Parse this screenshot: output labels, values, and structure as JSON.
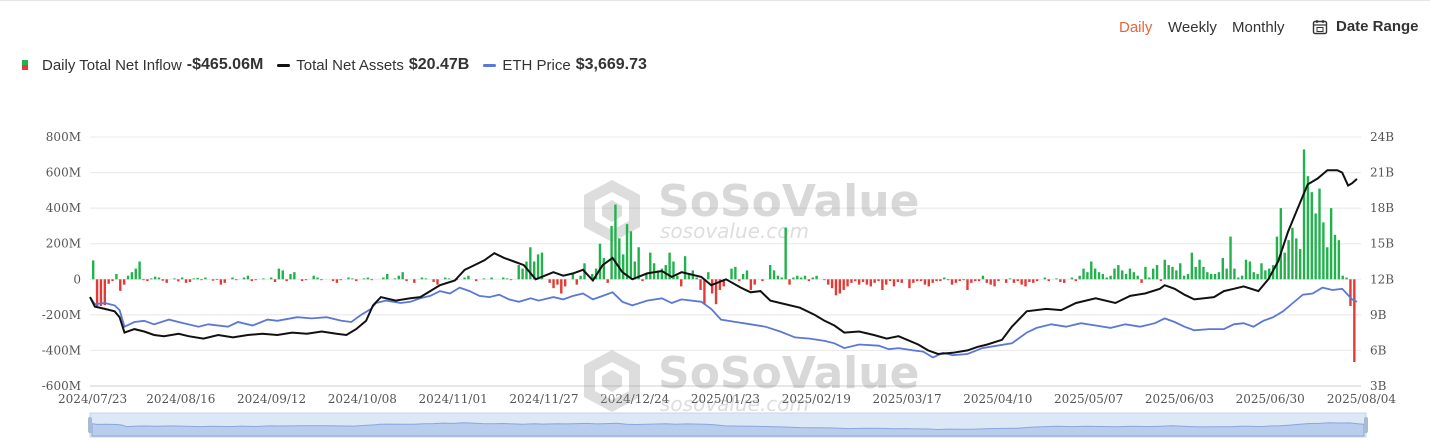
{
  "toolbar": {
    "periods": [
      "Daily",
      "Weekly",
      "Monthly"
    ],
    "active_period": "Daily",
    "date_range_label": "Date Range",
    "date_range_icon": "calendar-icon"
  },
  "legend": {
    "inflow": {
      "label": "Daily Total Net Inflow",
      "value": "-$465.06M"
    },
    "assets": {
      "label": "Total Net Assets",
      "value": "$20.47B"
    },
    "price": {
      "label": "ETH Price",
      "value": "$3,669.73"
    }
  },
  "watermark": {
    "brand": "SoSoValue",
    "domain": "sosovalue.com"
  },
  "colors": {
    "inflow_positive": "#22b14c",
    "inflow_negative": "#e53935",
    "assets_line": "#111111",
    "price_line": "#5b78d6",
    "active_period": "#e8643c"
  },
  "chart_data": {
    "type": "bar+line",
    "x_tick_labels": [
      "2024/07/23",
      "2024/08/16",
      "2024/09/12",
      "2024/10/08",
      "2024/11/01",
      "2024/11/27",
      "2024/12/24",
      "2025/01/23",
      "2025/02/19",
      "2025/03/17",
      "2025/04/10",
      "2025/05/07",
      "2025/06/03",
      "2025/06/30",
      "2025/08/04"
    ],
    "y_left": {
      "ticks": [
        "800M",
        "600M",
        "400M",
        "200M",
        "0",
        "-200M",
        "-400M",
        "-600M"
      ],
      "range": [
        -600,
        800
      ],
      "unit": "M"
    },
    "y_right": {
      "ticks": [
        "24B",
        "21B",
        "18B",
        "15B",
        "12B",
        "9B",
        "6B",
        "3B"
      ],
      "range": [
        3,
        24
      ],
      "unit": "B"
    },
    "grid": true,
    "series": [
      {
        "name": "Daily Total Net Inflow",
        "kind": "bar",
        "values": [
          106,
          -151,
          -150,
          -145,
          -25,
          -10,
          30,
          -65,
          -30,
          20,
          40,
          60,
          100,
          -5,
          -10,
          5,
          15,
          10,
          -8,
          -20,
          0,
          5,
          -12,
          10,
          -20,
          -15,
          5,
          8,
          -5,
          10,
          0,
          -8,
          2,
          -30,
          -20,
          0,
          10,
          -5,
          0,
          10,
          20,
          -10,
          -5,
          0,
          5,
          0,
          10,
          -15,
          60,
          50,
          -10,
          30,
          40,
          0,
          -10,
          -5,
          0,
          20,
          10,
          -5,
          0,
          0,
          -10,
          -20,
          -5,
          0,
          10,
          5,
          -10,
          0,
          5,
          10,
          -5,
          0,
          0,
          10,
          30,
          0,
          5,
          20,
          40,
          -10,
          0,
          -20,
          0,
          10,
          5,
          0,
          -15,
          -30,
          0,
          10,
          5,
          0,
          -5,
          0,
          10,
          20,
          0,
          -10,
          0,
          5,
          0,
          10,
          0,
          0,
          10,
          5,
          -5,
          0,
          80,
          60,
          100,
          180,
          100,
          140,
          150,
          0,
          -20,
          -50,
          -30,
          -80,
          -40,
          0,
          30,
          -30,
          20,
          90,
          0,
          30,
          60,
          200,
          120,
          -20,
          300,
          420,
          230,
          140,
          310,
          270,
          100,
          180,
          -10,
          30,
          150,
          90,
          50,
          60,
          80,
          150,
          100,
          20,
          -40,
          130,
          30,
          50,
          10,
          -60,
          -140,
          40,
          -80,
          -140,
          -60,
          -40,
          0,
          60,
          70,
          -10,
          30,
          50,
          -60,
          -30,
          0,
          -10,
          0,
          80,
          50,
          20,
          10,
          290,
          -30,
          10,
          20,
          10,
          20,
          -10,
          10,
          20,
          0,
          -5,
          -30,
          -50,
          -90,
          -80,
          -60,
          -40,
          -20,
          -10,
          -30,
          -15,
          -30,
          -40,
          -20,
          -10,
          -60,
          -30,
          -10,
          -40,
          -15,
          -20,
          0,
          -50,
          -20,
          -10,
          -10,
          -30,
          -40,
          -20,
          -10,
          -10,
          10,
          -5,
          -30,
          -20,
          -10,
          -5,
          -60,
          -20,
          -10,
          -10,
          20,
          -20,
          -30,
          -40,
          -10,
          0,
          -20,
          5,
          -20,
          -10,
          -30,
          -40,
          -15,
          -20,
          -10,
          0,
          10,
          -10,
          0,
          5,
          -15,
          -20,
          0,
          10,
          -10,
          20,
          60,
          40,
          100,
          60,
          40,
          30,
          10,
          20,
          60,
          80,
          50,
          30,
          60,
          40,
          20,
          -20,
          70,
          10,
          60,
          80,
          -10,
          110,
          80,
          70,
          50,
          90,
          20,
          30,
          150,
          70,
          110,
          70,
          40,
          30,
          30,
          40,
          120,
          60,
          240,
          60,
          10,
          20,
          110,
          100,
          40,
          30,
          90,
          50,
          60,
          80,
          240,
          400,
          150,
          220,
          290,
          230,
          170,
          730,
          580,
          490,
          370,
          510,
          320,
          180,
          400,
          250,
          220,
          20,
          10,
          -150,
          -465
        ]
      },
      {
        "name": "Total Net Assets",
        "kind": "line",
        "unit": "B",
        "points": [
          [
            0,
            10.5
          ],
          [
            5,
            9.7
          ],
          [
            15,
            9.5
          ],
          [
            25,
            9.3
          ],
          [
            30,
            8.8
          ],
          [
            35,
            7.5
          ],
          [
            45,
            7.8
          ],
          [
            55,
            7.6
          ],
          [
            65,
            7.3
          ],
          [
            75,
            7.2
          ],
          [
            90,
            7.4
          ],
          [
            100,
            7.2
          ],
          [
            115,
            7.0
          ],
          [
            130,
            7.3
          ],
          [
            145,
            7.1
          ],
          [
            160,
            7.3
          ],
          [
            175,
            7.4
          ],
          [
            190,
            7.3
          ],
          [
            205,
            7.5
          ],
          [
            220,
            7.4
          ],
          [
            235,
            7.6
          ],
          [
            250,
            7.4
          ],
          [
            260,
            7.3
          ],
          [
            270,
            7.8
          ],
          [
            280,
            8.5
          ],
          [
            287,
            9.8
          ],
          [
            295,
            10.5
          ],
          [
            310,
            10.2
          ],
          [
            325,
            10.4
          ],
          [
            335,
            10.5
          ],
          [
            345,
            11.0
          ],
          [
            355,
            11.5
          ],
          [
            370,
            11.9
          ],
          [
            380,
            12.8
          ],
          [
            390,
            13.2
          ],
          [
            400,
            13.6
          ],
          [
            410,
            14.2
          ],
          [
            420,
            13.8
          ],
          [
            430,
            13.5
          ],
          [
            440,
            13.2
          ],
          [
            452,
            12.0
          ],
          [
            470,
            12.6
          ],
          [
            480,
            12.3
          ],
          [
            490,
            12.5
          ],
          [
            500,
            12.8
          ],
          [
            510,
            11.9
          ],
          [
            520,
            13.2
          ],
          [
            530,
            13.8
          ],
          [
            540,
            12.6
          ],
          [
            550,
            12.0
          ],
          [
            565,
            12.5
          ],
          [
            580,
            12.7
          ],
          [
            590,
            12.2
          ],
          [
            600,
            12.6
          ],
          [
            620,
            12.2
          ],
          [
            630,
            11.5
          ],
          [
            645,
            12.0
          ],
          [
            660,
            11.3
          ],
          [
            670,
            10.9
          ],
          [
            680,
            11.0
          ],
          [
            690,
            10.2
          ],
          [
            700,
            10.0
          ],
          [
            720,
            9.6
          ],
          [
            735,
            9.0
          ],
          [
            745,
            8.5
          ],
          [
            755,
            8.1
          ],
          [
            765,
            7.5
          ],
          [
            780,
            7.6
          ],
          [
            795,
            7.3
          ],
          [
            808,
            7.0
          ],
          [
            820,
            7.2
          ],
          [
            840,
            6.5
          ],
          [
            850,
            6.0
          ],
          [
            860,
            5.7
          ],
          [
            875,
            5.8
          ],
          [
            890,
            6.0
          ],
          [
            900,
            6.3
          ],
          [
            910,
            6.5
          ],
          [
            925,
            6.9
          ],
          [
            935,
            8.0
          ],
          [
            950,
            9.3
          ],
          [
            970,
            9.5
          ],
          [
            985,
            9.4
          ],
          [
            1000,
            10.0
          ],
          [
            1020,
            10.4
          ],
          [
            1040,
            10.0
          ],
          [
            1055,
            10.6
          ],
          [
            1070,
            10.8
          ],
          [
            1085,
            11.2
          ],
          [
            1090,
            11.5
          ],
          [
            1100,
            11.2
          ],
          [
            1110,
            10.7
          ],
          [
            1120,
            10.3
          ],
          [
            1140,
            10.5
          ],
          [
            1150,
            11.0
          ],
          [
            1160,
            11.2
          ],
          [
            1170,
            11.4
          ],
          [
            1185,
            11.0
          ],
          [
            1195,
            12.0
          ],
          [
            1205,
            13.5
          ],
          [
            1215,
            16.0
          ],
          [
            1225,
            18.0
          ],
          [
            1235,
            20.0
          ],
          [
            1245,
            20.5
          ],
          [
            1255,
            21.2
          ],
          [
            1265,
            21.2
          ],
          [
            1270,
            21.0
          ],
          [
            1276,
            19.9
          ],
          [
            1280,
            20.1
          ],
          [
            1285,
            20.47
          ]
        ]
      },
      {
        "name": "ETH Price",
        "kind": "line",
        "unit": "B",
        "points": [
          [
            0,
            10.5
          ],
          [
            5,
            9.9
          ],
          [
            15,
            10.0
          ],
          [
            25,
            9.8
          ],
          [
            30,
            9.4
          ],
          [
            35,
            8.0
          ],
          [
            45,
            8.4
          ],
          [
            55,
            8.5
          ],
          [
            65,
            8.2
          ],
          [
            80,
            8.6
          ],
          [
            95,
            8.3
          ],
          [
            110,
            8.0
          ],
          [
            120,
            8.2
          ],
          [
            140,
            8.0
          ],
          [
            150,
            8.4
          ],
          [
            165,
            8.1
          ],
          [
            180,
            8.6
          ],
          [
            190,
            8.5
          ],
          [
            210,
            8.8
          ],
          [
            225,
            8.7
          ],
          [
            240,
            8.8
          ],
          [
            255,
            8.5
          ],
          [
            265,
            8.4
          ],
          [
            275,
            9.0
          ],
          [
            285,
            9.5
          ],
          [
            290,
            10.0
          ],
          [
            300,
            10.2
          ],
          [
            315,
            10.0
          ],
          [
            325,
            10.1
          ],
          [
            335,
            10.4
          ],
          [
            345,
            10.6
          ],
          [
            355,
            11.0
          ],
          [
            365,
            10.8
          ],
          [
            375,
            11.3
          ],
          [
            385,
            11.0
          ],
          [
            395,
            10.6
          ],
          [
            405,
            10.5
          ],
          [
            415,
            10.7
          ],
          [
            425,
            10.3
          ],
          [
            435,
            10.1
          ],
          [
            447,
            10.4
          ],
          [
            455,
            10.2
          ],
          [
            470,
            10.5
          ],
          [
            480,
            10.3
          ],
          [
            490,
            10.6
          ],
          [
            500,
            10.8
          ],
          [
            510,
            10.3
          ],
          [
            520,
            10.6
          ],
          [
            530,
            10.9
          ],
          [
            540,
            10.1
          ],
          [
            550,
            9.8
          ],
          [
            565,
            10.2
          ],
          [
            580,
            10.4
          ],
          [
            590,
            10.0
          ],
          [
            600,
            10.3
          ],
          [
            620,
            10.1
          ],
          [
            630,
            9.5
          ],
          [
            640,
            8.6
          ],
          [
            655,
            8.4
          ],
          [
            670,
            8.2
          ],
          [
            685,
            8.0
          ],
          [
            700,
            7.6
          ],
          [
            715,
            7.1
          ],
          [
            730,
            7.0
          ],
          [
            745,
            6.8
          ],
          [
            755,
            6.6
          ],
          [
            765,
            6.2
          ],
          [
            780,
            6.5
          ],
          [
            800,
            6.4
          ],
          [
            810,
            6.1
          ],
          [
            820,
            6.2
          ],
          [
            835,
            6.0
          ],
          [
            845,
            5.9
          ],
          [
            855,
            5.4
          ],
          [
            865,
            5.8
          ],
          [
            875,
            5.6
          ],
          [
            890,
            5.7
          ],
          [
            905,
            6.2
          ],
          [
            920,
            6.4
          ],
          [
            935,
            6.6
          ],
          [
            950,
            7.5
          ],
          [
            960,
            7.9
          ],
          [
            975,
            8.2
          ],
          [
            990,
            8.0
          ],
          [
            1005,
            8.3
          ],
          [
            1020,
            8.1
          ],
          [
            1035,
            7.9
          ],
          [
            1050,
            8.2
          ],
          [
            1065,
            8.0
          ],
          [
            1080,
            8.3
          ],
          [
            1090,
            8.7
          ],
          [
            1100,
            8.4
          ],
          [
            1110,
            8.0
          ],
          [
            1120,
            7.7
          ],
          [
            1135,
            7.8
          ],
          [
            1150,
            7.8
          ],
          [
            1160,
            8.2
          ],
          [
            1170,
            8.3
          ],
          [
            1180,
            8.0
          ],
          [
            1190,
            8.5
          ],
          [
            1200,
            8.8
          ],
          [
            1210,
            9.3
          ],
          [
            1220,
            10.0
          ],
          [
            1230,
            10.7
          ],
          [
            1240,
            10.8
          ],
          [
            1250,
            11.3
          ],
          [
            1260,
            11.1
          ],
          [
            1270,
            11.2
          ],
          [
            1280,
            10.3
          ],
          [
            1285,
            10.1
          ]
        ]
      }
    ]
  }
}
